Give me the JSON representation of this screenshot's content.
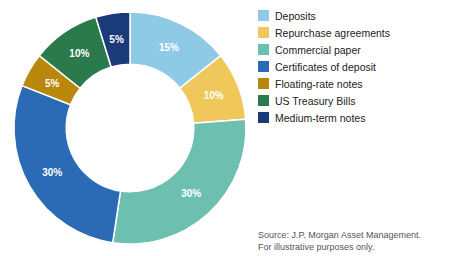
{
  "chart_data": {
    "type": "pie",
    "categories": [
      "Deposits",
      "Repurchase agreements",
      "Commercial paper",
      "Certificates of deposit",
      "Floating-rate notes",
      "US Treasury Bills",
      "Medium-term notes"
    ],
    "values": [
      15,
      10,
      30,
      30,
      5,
      10,
      5
    ],
    "value_labels": [
      "15%",
      "10%",
      "30%",
      "30%",
      "5%",
      "10%",
      "5%"
    ],
    "colors": [
      "#8ECAE6",
      "#F0C75A",
      "#6DBFB0",
      "#2B6BB5",
      "#B8870B",
      "#2A7A4B",
      "#1B3A7A"
    ],
    "data_labels": true,
    "annotations": [
      "Source: J.P. Morgan Asset Management.",
      "For illustrative purposes only."
    ]
  }
}
